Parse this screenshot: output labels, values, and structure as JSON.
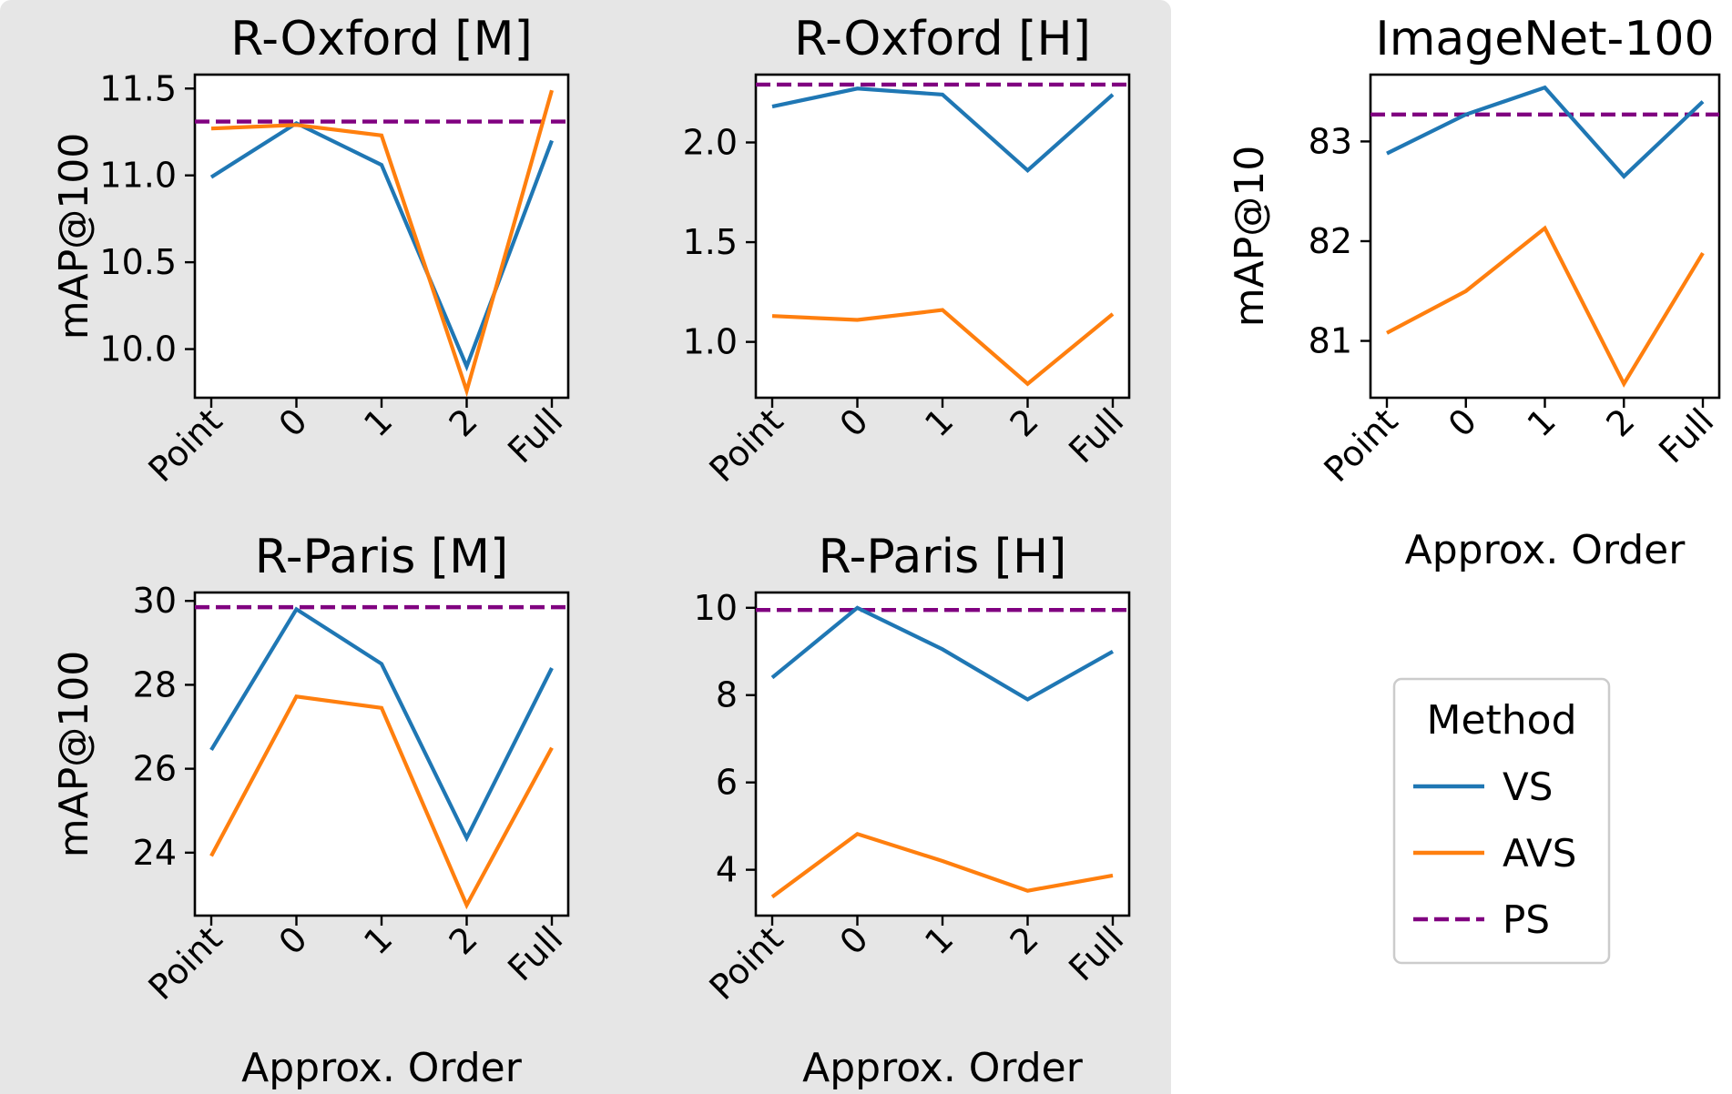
{
  "colors": {
    "VS": "#1f77b4",
    "AVS": "#ff7f0e",
    "PS": "#800080",
    "highlight": "#e6e6e6"
  },
  "legend": {
    "title": "Method",
    "items": [
      {
        "label": "VS",
        "style": "solid",
        "color": "#1f77b4"
      },
      {
        "label": "AVS",
        "style": "solid",
        "color": "#ff7f0e"
      },
      {
        "label": "PS",
        "style": "dashed",
        "color": "#800080"
      }
    ]
  },
  "chart_data": [
    {
      "type": "line",
      "title": "R-Oxford [M]",
      "xlabel": "",
      "ylabel": "mAP@100",
      "categories": [
        "Point",
        "0",
        "1",
        "2",
        "Full"
      ],
      "ylim": [
        9.72,
        11.58
      ],
      "yticks": [
        10.0,
        10.5,
        11.0,
        11.5
      ],
      "ytick_labels": [
        "10.0",
        "10.5",
        "11.0",
        "11.5"
      ],
      "series": [
        {
          "name": "VS",
          "values": [
            10.99,
            11.3,
            11.06,
            9.9,
            11.2
          ]
        },
        {
          "name": "AVS",
          "values": [
            11.27,
            11.29,
            11.23,
            9.76,
            11.49
          ]
        }
      ],
      "reference": {
        "name": "PS",
        "value": 11.31
      }
    },
    {
      "type": "line",
      "title": "R-Oxford [H]",
      "xlabel": "",
      "ylabel": "",
      "categories": [
        "Point",
        "0",
        "1",
        "2",
        "Full"
      ],
      "ylim": [
        0.72,
        2.34
      ],
      "yticks": [
        1.0,
        1.5,
        2.0
      ],
      "ytick_labels": [
        "1.0",
        "1.5",
        "2.0"
      ],
      "series": [
        {
          "name": "VS",
          "values": [
            2.18,
            2.27,
            2.24,
            1.86,
            2.24
          ]
        },
        {
          "name": "AVS",
          "values": [
            1.13,
            1.11,
            1.16,
            0.79,
            1.14
          ]
        }
      ],
      "reference": {
        "name": "PS",
        "value": 2.29
      }
    },
    {
      "type": "line",
      "title": "ImageNet-100",
      "xlabel": "Approx. Order",
      "ylabel": "mAP@10",
      "categories": [
        "Point",
        "0",
        "1",
        "2",
        "Full"
      ],
      "ylim": [
        80.43,
        83.67
      ],
      "yticks": [
        81,
        82,
        83
      ],
      "ytick_labels": [
        "81",
        "82",
        "83"
      ],
      "series": [
        {
          "name": "VS",
          "values": [
            82.88,
            83.27,
            83.54,
            82.65,
            83.4
          ]
        },
        {
          "name": "AVS",
          "values": [
            81.08,
            81.5,
            82.13,
            80.57,
            81.88
          ]
        }
      ],
      "reference": {
        "name": "PS",
        "value": 83.27
      }
    },
    {
      "type": "line",
      "title": "R-Paris [M]",
      "xlabel": "Approx. Order",
      "ylabel": "mAP@100",
      "categories": [
        "Point",
        "0",
        "1",
        "2",
        "Full"
      ],
      "ylim": [
        22.5,
        30.2
      ],
      "yticks": [
        24,
        26,
        28,
        30
      ],
      "ytick_labels": [
        "24",
        "26",
        "28",
        "30"
      ],
      "series": [
        {
          "name": "VS",
          "values": [
            26.45,
            29.8,
            28.5,
            24.35,
            28.4
          ]
        },
        {
          "name": "AVS",
          "values": [
            23.92,
            27.72,
            27.45,
            22.75,
            26.5
          ]
        }
      ],
      "reference": {
        "name": "PS",
        "value": 29.85
      }
    },
    {
      "type": "line",
      "title": "R-Paris [H]",
      "xlabel": "Approx. Order",
      "ylabel": "",
      "categories": [
        "Point",
        "0",
        "1",
        "2",
        "Full"
      ],
      "ylim": [
        2.95,
        10.35
      ],
      "yticks": [
        4,
        6,
        8,
        10
      ],
      "ytick_labels": [
        "4",
        "6",
        "8",
        "10"
      ],
      "series": [
        {
          "name": "VS",
          "values": [
            8.4,
            10.0,
            9.05,
            7.9,
            9.0
          ]
        },
        {
          "name": "AVS",
          "values": [
            3.38,
            4.82,
            4.2,
            3.52,
            3.87
          ]
        }
      ],
      "reference": {
        "name": "PS",
        "value": 9.95
      }
    }
  ]
}
